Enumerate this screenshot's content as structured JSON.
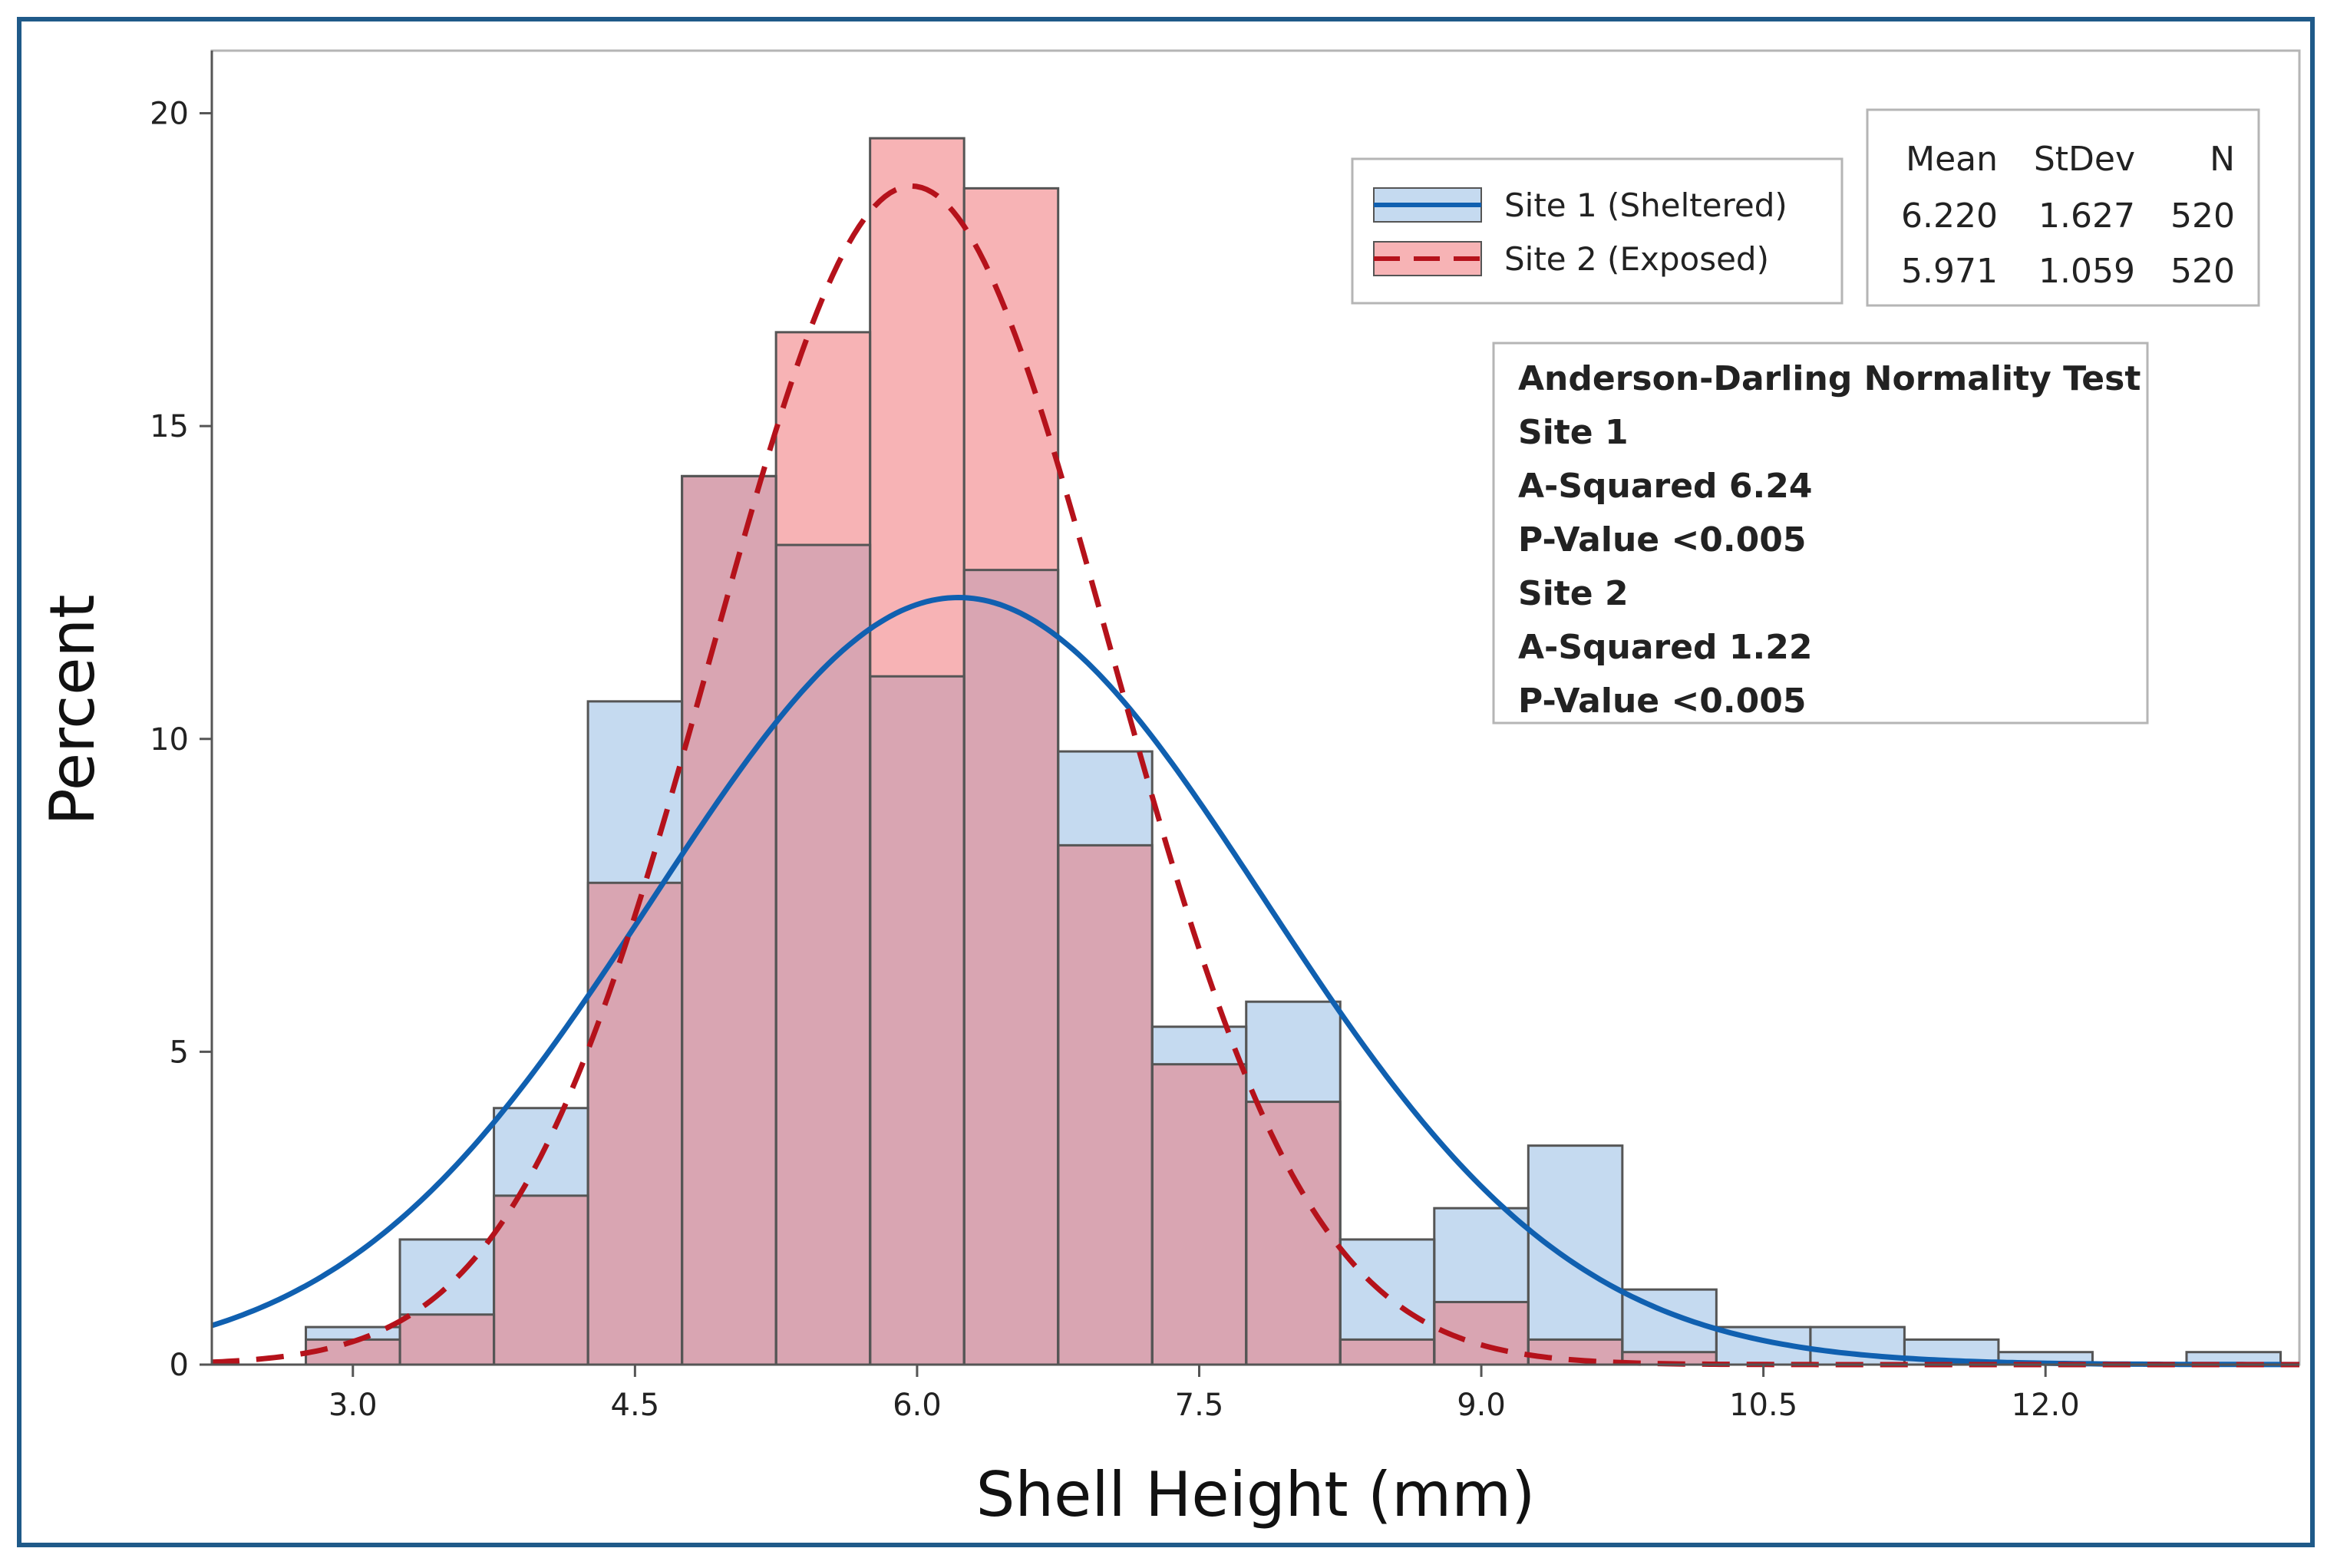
{
  "chart_data": {
    "type": "histogram",
    "xlabel": "Shell Height (mm)",
    "ylabel": "Percent",
    "xlim": [
      2.25,
      13.35
    ],
    "ylim": [
      0,
      21
    ],
    "x_ticks": [
      "3.0",
      "4.5",
      "6.0",
      "7.5",
      "9.0",
      "10.5",
      "12.0"
    ],
    "x_tick_values": [
      3.0,
      4.5,
      6.0,
      7.5,
      9.0,
      10.5,
      12.0
    ],
    "y_ticks": [
      "0",
      "5",
      "10",
      "15",
      "20"
    ],
    "y_tick_values": [
      0,
      5,
      10,
      15,
      20
    ],
    "bin_width": 0.5,
    "bin_centers": [
      3.0,
      3.5,
      4.0,
      4.5,
      5.0,
      5.5,
      6.0,
      6.5,
      7.0,
      7.5,
      8.0,
      8.5,
      9.0,
      9.5,
      10.0,
      10.5,
      11.0,
      11.5,
      12.0,
      12.5,
      13.0
    ],
    "series": [
      {
        "name": "Site 1 (Sheltered)",
        "values": [
          0.6,
          2.0,
          4.1,
          10.6,
          14.2,
          13.1,
          11.0,
          12.7,
          9.8,
          5.4,
          5.8,
          2.0,
          2.5,
          3.5,
          1.2,
          0.6,
          0.6,
          0.4,
          0.2,
          0.0,
          0.2
        ],
        "fill": "#c5daf0",
        "line": "#1060b0",
        "mean": 6.22,
        "stdev": 1.627,
        "curve_style": "solid"
      },
      {
        "name": "Site 2 (Exposed)",
        "values": [
          0.4,
          0.8,
          2.7,
          7.7,
          14.2,
          16.5,
          19.6,
          18.8,
          8.3,
          4.8,
          4.2,
          0.4,
          1.0,
          0.4,
          0.2,
          0.0,
          0.0,
          0.0,
          0.0,
          0.0,
          0.0
        ],
        "fill": "#f7b3b5",
        "line": "#b5121b",
        "mean": 5.971,
        "stdev": 1.059,
        "curve_style": "dashed"
      }
    ],
    "overlap_fill": "#d9a5b2",
    "legend": {
      "position": "top-right",
      "entries": [
        "Site 1 (Sheltered)",
        "Site 2 (Exposed)"
      ]
    },
    "stats_table": {
      "headers": [
        "Mean",
        "StDev",
        "N"
      ],
      "rows": [
        [
          "6.220",
          "1.627",
          "520"
        ],
        [
          "5.971",
          "1.059",
          "520"
        ]
      ]
    },
    "annotation": {
      "lines": [
        "Anderson-Darling Normality Test",
        "Site 1",
        "A-Squared 6.24",
        "P-Value <0.005",
        "Site 2",
        "A-Squared 1.22",
        "P-Value <0.005"
      ]
    }
  }
}
